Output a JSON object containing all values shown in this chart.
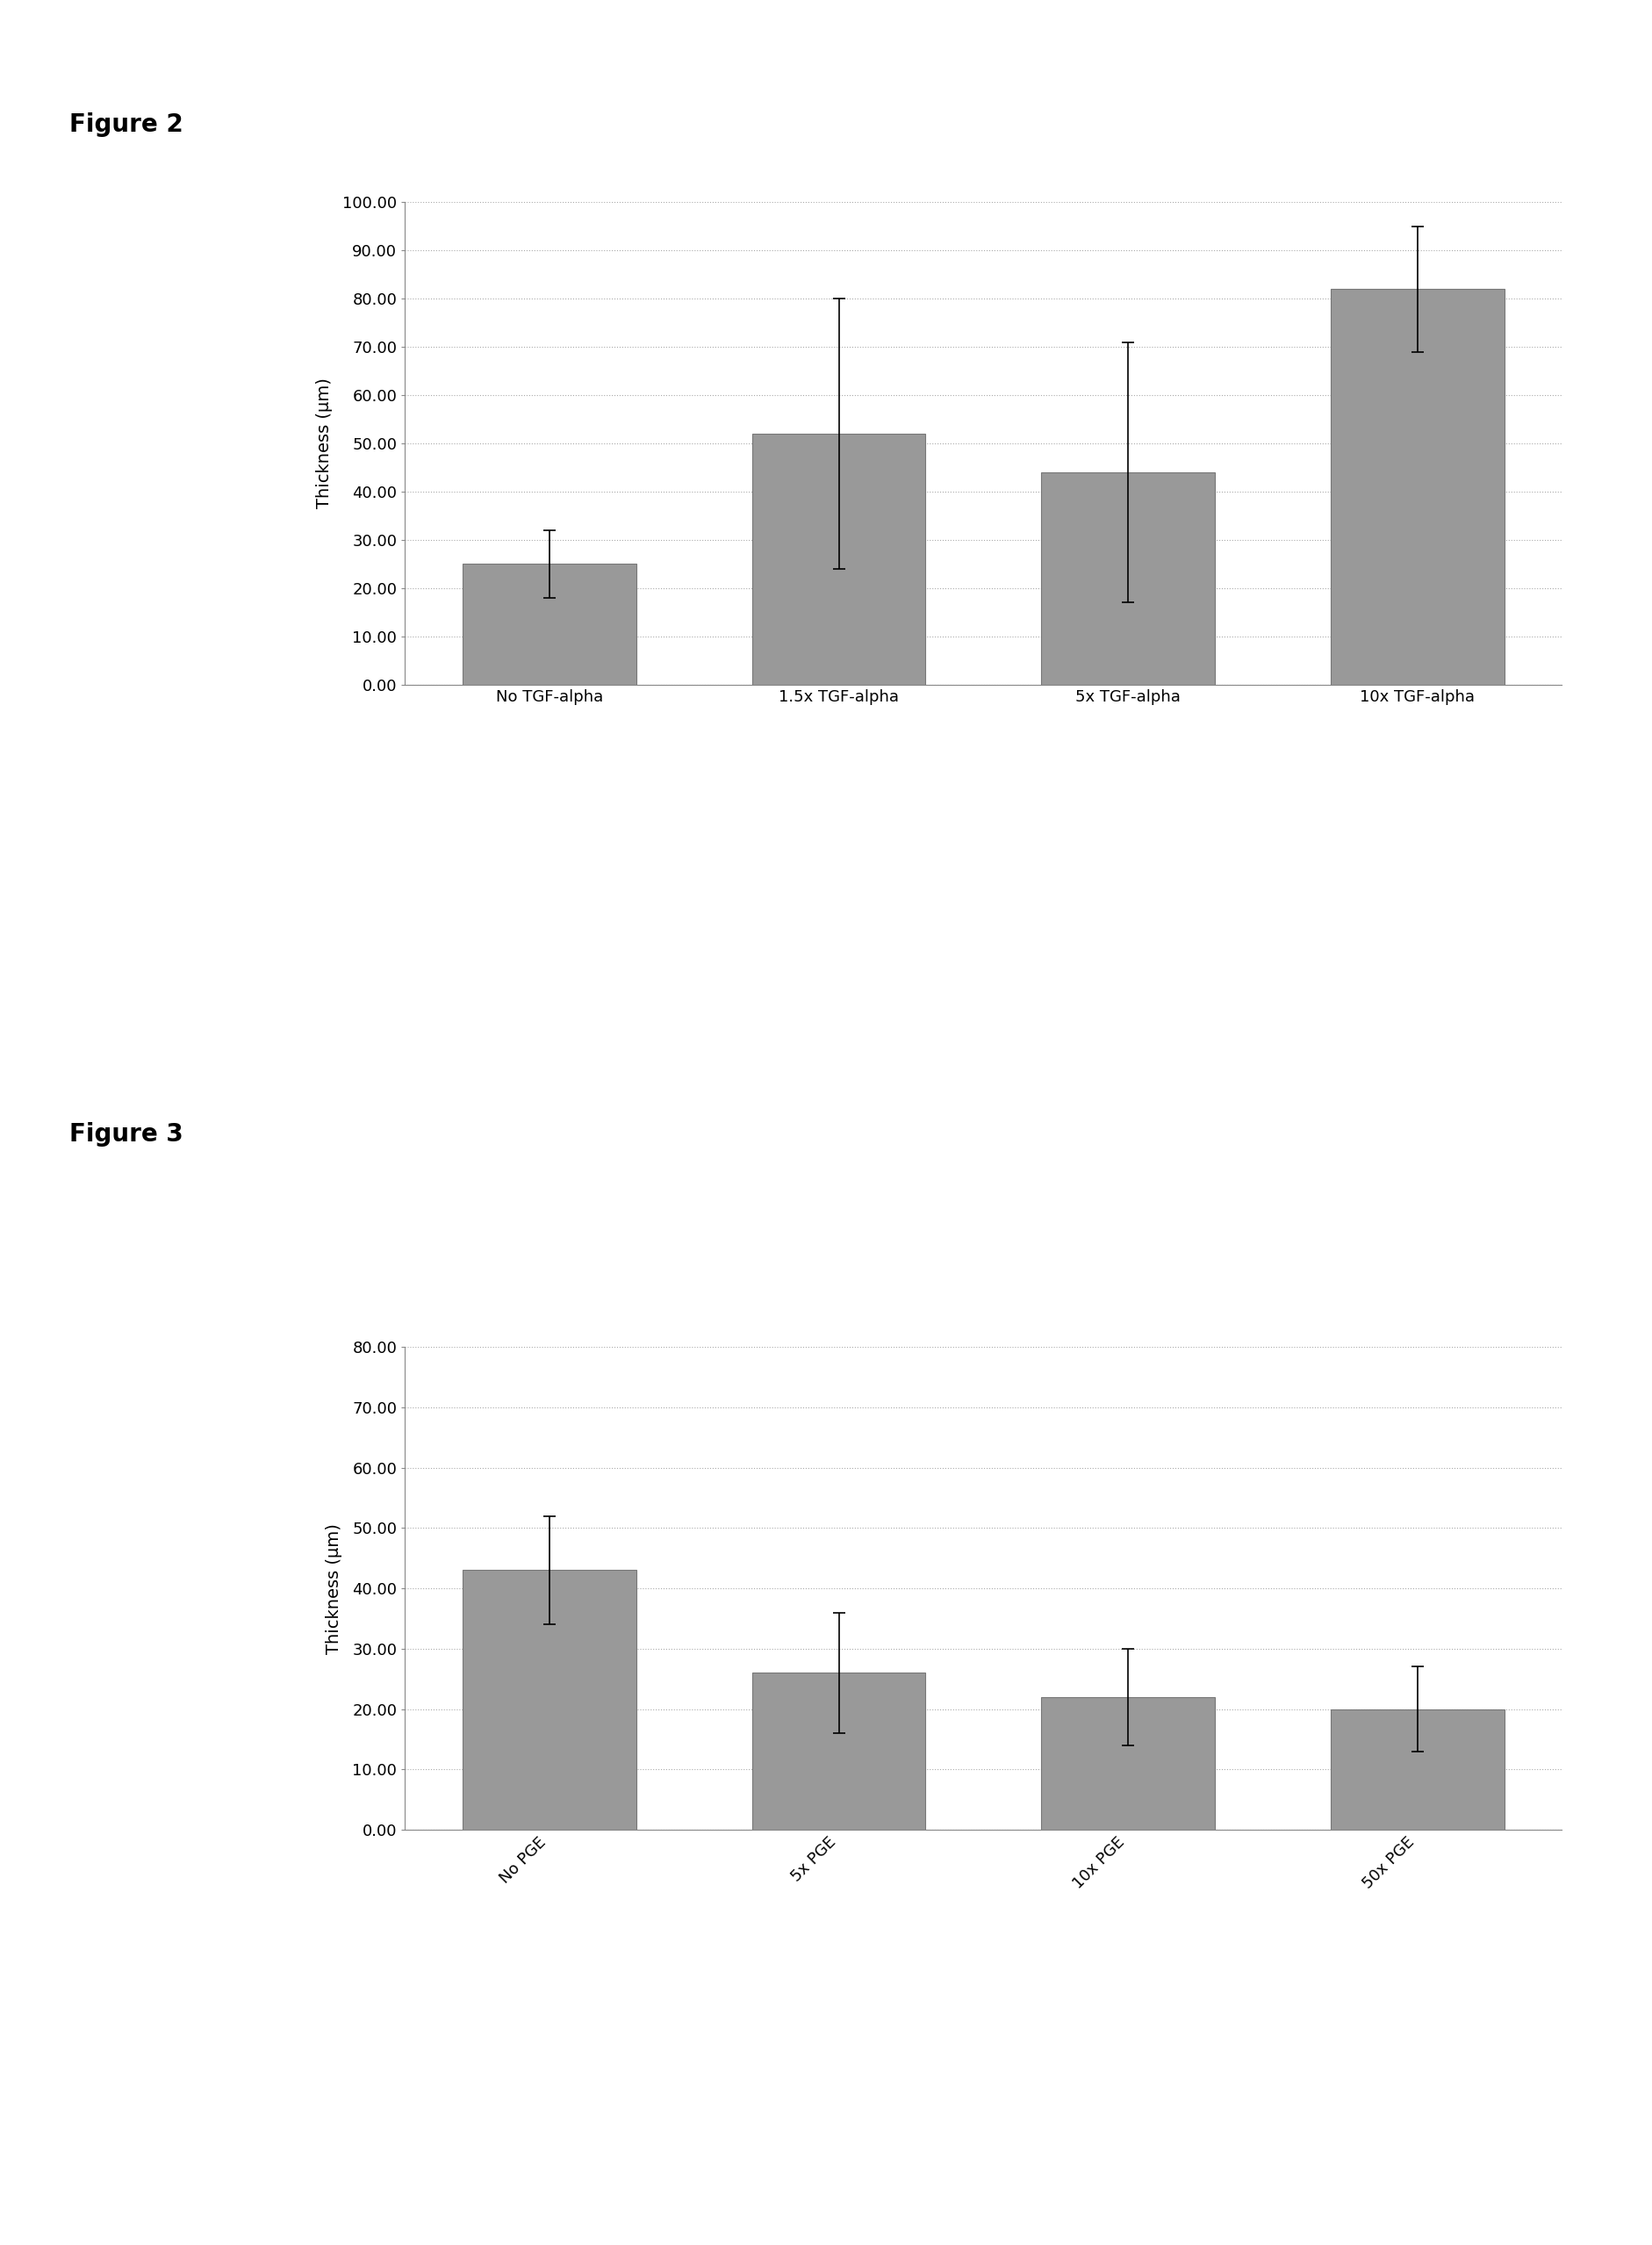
{
  "fig2": {
    "title": "Figure 2",
    "categories": [
      "No TGF-alpha",
      "1.5x TGF-alpha",
      "5x TGF-alpha",
      "10x TGF-alpha"
    ],
    "values": [
      25.0,
      52.0,
      44.0,
      82.0
    ],
    "errors": [
      7.0,
      28.0,
      27.0,
      13.0
    ],
    "ylabel": "Thickness (μm)",
    "ylim": [
      0,
      100
    ],
    "yticks": [
      0,
      10,
      20,
      30,
      40,
      50,
      60,
      70,
      80,
      90,
      100
    ],
    "yticklabels": [
      "0.00",
      "10.00",
      "20.00",
      "30.00",
      "40.00",
      "50.00",
      "60.00",
      "70.00",
      "80.00",
      "90.00",
      "100.00"
    ],
    "bar_color": "#999999",
    "bar_width": 0.6,
    "xtick_rotation": 0
  },
  "fig3": {
    "title": "Figure 3",
    "categories": [
      "No PGE",
      "5x PGE",
      "10x PGE",
      "50x PGE"
    ],
    "values": [
      43.0,
      26.0,
      22.0,
      20.0
    ],
    "errors": [
      9.0,
      10.0,
      8.0,
      7.0
    ],
    "ylabel": "Thickness (μm)",
    "ylim": [
      0,
      80
    ],
    "yticks": [
      0,
      10,
      20,
      30,
      40,
      50,
      60,
      70,
      80
    ],
    "yticklabels": [
      "0.00",
      "10.00",
      "20.00",
      "30.00",
      "40.00",
      "50.00",
      "60.00",
      "70.00",
      "80.00"
    ],
    "bar_color": "#999999",
    "bar_width": 0.6,
    "xtick_rotation": 45
  },
  "background_color": "#ffffff",
  "fig_label_fontsize": 20,
  "axis_label_fontsize": 14,
  "ytick_fontsize": 13,
  "xtick_fontsize": 13
}
